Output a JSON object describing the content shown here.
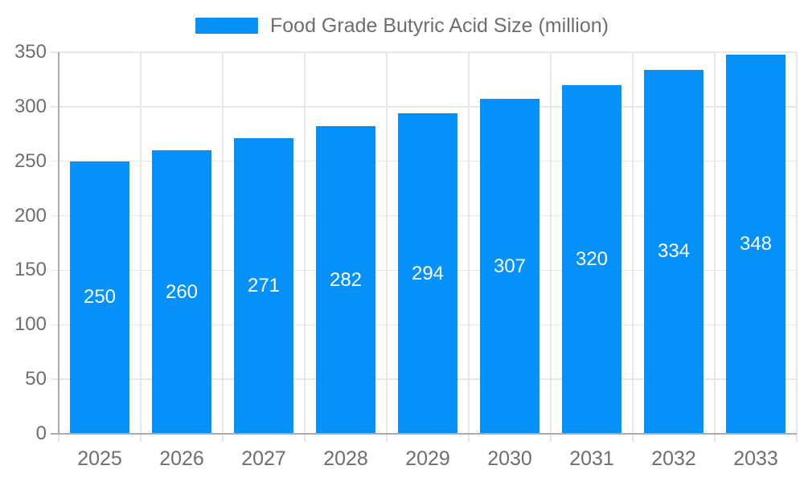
{
  "legend": {
    "label": "Food Grade Butyric Acid Size (million)"
  },
  "chart_data": {
    "type": "bar",
    "title": "Food Grade Butyric Acid Size (million)",
    "series": [
      {
        "name": "Food Grade Butyric Acid Size (million)",
        "values": [
          250,
          260,
          271,
          282,
          294,
          307,
          320,
          334,
          348
        ]
      }
    ],
    "categories": [
      "2025",
      "2026",
      "2027",
      "2028",
      "2029",
      "2030",
      "2031",
      "2032",
      "2033"
    ],
    "xlabel": "",
    "ylabel": "",
    "ylim": [
      0,
      350
    ],
    "yticks": [
      0,
      50,
      100,
      150,
      200,
      250,
      300,
      350
    ],
    "grid": true,
    "legend_position": "top-center",
    "bar_labels_shown": true,
    "colors": {
      "bar": "#0591F8",
      "grid": "#E6E6E6",
      "axis": "#ABABAB",
      "text": "#6E6E6E",
      "bar_label": "#FFFFFF",
      "background": "#FFFFFF"
    }
  }
}
